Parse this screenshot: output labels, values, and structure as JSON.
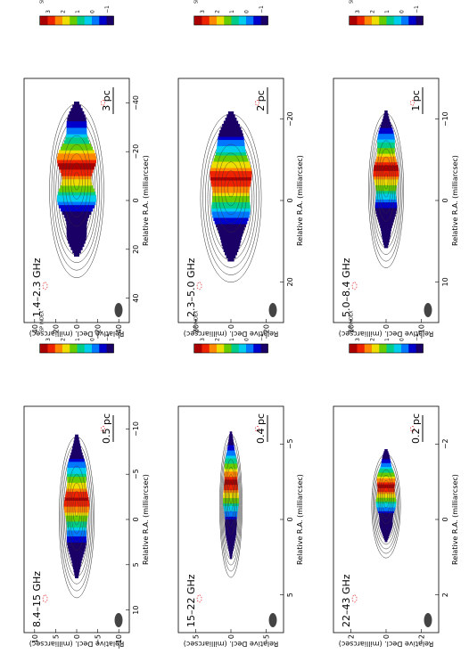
{
  "chart_data": [
    {
      "type": "heatmap",
      "label": "1.4–2.3 GHz",
      "scalebar": "3 pc",
      "xlabel": "Relative R.A. (milliarcsec)",
      "ylabel": "Relative Decl. (milliarcsec)",
      "xticks": [
        "40",
        "20",
        "0",
        "−20",
        "−40"
      ],
      "yticks": [
        "40",
        "20",
        "0",
        "−20",
        "−40"
      ],
      "colorbar_title": "SP INDEX",
      "colorbar_ticks": [
        "−1",
        "0",
        "1",
        "2",
        "3"
      ]
    },
    {
      "type": "heatmap",
      "label": "2.3–5.0 GHz",
      "scalebar": "2 pc",
      "xlabel": "Relative R.A. (milliarcsec)",
      "ylabel": "Relative Decl. (milliarcsec)",
      "xticks": [
        "20",
        "0",
        "−20"
      ],
      "yticks": [
        "20",
        "0",
        "−20"
      ],
      "colorbar_title": "SP INDEX",
      "colorbar_ticks": [
        "−1",
        "0",
        "1",
        "2",
        "3"
      ]
    },
    {
      "type": "heatmap",
      "label": "5.0–8.4 GHz",
      "scalebar": "1 pc",
      "xlabel": "Relative R.A. (milliarcsec)",
      "ylabel": "Relative Decl. (milliarcsec)",
      "xticks": [
        "10",
        "0",
        "−10"
      ],
      "yticks": [
        "10",
        "0",
        "−10"
      ],
      "colorbar_title": "SP INDEX",
      "colorbar_ticks": [
        "−1",
        "0",
        "1",
        "2",
        "3"
      ]
    },
    {
      "type": "heatmap",
      "label": "8.4–15 GHz",
      "scalebar": "0.5 pc",
      "xlabel": "Relative R.A. (milliarcsec)",
      "ylabel": "Relative Decl. (milliarcsec)",
      "xticks": [
        "10",
        "5",
        "0",
        "−5",
        "−10"
      ],
      "yticks": [
        "10",
        "5",
        "0",
        "−5",
        "−10"
      ],
      "colorbar_title": "SP INDEX",
      "colorbar_ticks": [
        "−1",
        "0",
        "1",
        "2",
        "3"
      ]
    },
    {
      "type": "heatmap",
      "label": "15–22 GHz",
      "scalebar": "0.4 pc",
      "xlabel": "Relative R.A. (milliarcsec)",
      "ylabel": "Relative Decl. (milliarcsec)",
      "xticks": [
        "5",
        "0",
        "−5"
      ],
      "yticks": [
        "5",
        "0",
        "−5"
      ],
      "colorbar_title": "SP INDEX",
      "colorbar_ticks": [
        "−1",
        "0",
        "1",
        "2",
        "3"
      ]
    },
    {
      "type": "heatmap",
      "label": "22–43 GHz",
      "scalebar": "0.2 pc",
      "xlabel": "Relative R.A. (milliarcsec)",
      "ylabel": "Relative Decl. (milliarcsec)",
      "xticks": [
        "2",
        "0",
        "−2"
      ],
      "yticks": [
        "2",
        "0",
        "−2"
      ],
      "colorbar_title": "SP INDEX",
      "colorbar_ticks": [
        "−1",
        "0",
        "1",
        "2",
        "3"
      ]
    }
  ],
  "colors": {
    "colormap": [
      "#1a0066",
      "#0000cc",
      "#0077ff",
      "#00ccee",
      "#00cc88",
      "#66cc00",
      "#eedd00",
      "#ff8800",
      "#ee2200",
      "#aa0000"
    ],
    "contour": "#333333",
    "negative_contour": "#dd2222",
    "beam": "#444444"
  }
}
